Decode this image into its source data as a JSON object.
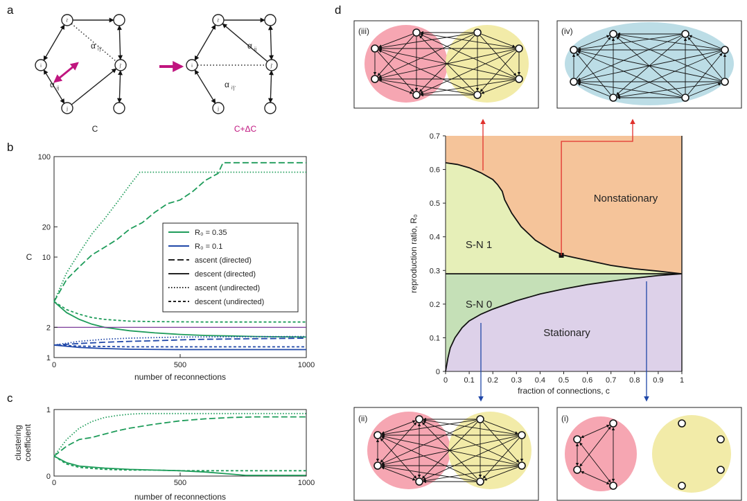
{
  "panels": {
    "a": {
      "letter": "a",
      "left_caption": "C",
      "right_caption": "C+ΔC",
      "alpha": "α",
      "sub_ij": "ij",
      "sub_ijp": "i'j'",
      "node_i": "i",
      "node_ip": "i'",
      "node_j": "j",
      "node_jp": "j'"
    },
    "b": {
      "letter": "b",
      "legend": [
        "R₀ = 0.35",
        "R₀ = 0.1",
        "ascent (directed)",
        "descent (directed)",
        "ascent (undirected)",
        "descent (undirected)"
      ]
    },
    "c": {
      "letter": "c"
    },
    "d": {
      "letter": "d",
      "network_labels": [
        "(iii)",
        "(iv)",
        "(ii)",
        "(i)"
      ]
    }
  },
  "colors": {
    "green": "#1e9c5a",
    "blue": "#1f47a8",
    "purple": "#7a3a98",
    "magenta": "#c0157f",
    "red_arrow": "#e0302c",
    "blue_arrow": "#1f47a8",
    "pink": "#f6a6b2",
    "yellow": "#f2eba8",
    "lightblue": "#bcdde6",
    "nonstationary": "#f5c49a",
    "sn1": "#e6efb8",
    "sn0": "#c5e0b7",
    "stationary": "#ddd1e9"
  },
  "chart_data": [
    {
      "id": "b",
      "type": "line",
      "xlabel": "number of reconnections",
      "ylabel": "C",
      "xlim": [
        0,
        1000
      ],
      "ylim": [
        1,
        100
      ],
      "yscale": "log",
      "xticks": [
        0,
        500,
        1000
      ],
      "yticks": [
        1,
        2,
        10,
        20,
        100
      ],
      "grid": false,
      "legend_position": "right",
      "series": [
        {
          "name": "ascent (directed)",
          "R0": 0.35,
          "color": "green",
          "dash": "dashed",
          "x": [
            0,
            50,
            100,
            150,
            200,
            250,
            300,
            350,
            400,
            450,
            500,
            550,
            600,
            650,
            670,
            700,
            800,
            900,
            1000
          ],
          "y": [
            3.6,
            6.0,
            8.0,
            10.5,
            12.5,
            15.0,
            19.0,
            22.0,
            28.0,
            34.0,
            37.0,
            45.0,
            58.0,
            68.0,
            87.0,
            87.0,
            87.0,
            87.0,
            87.0
          ]
        },
        {
          "name": "descent (directed)",
          "R0": 0.35,
          "color": "green",
          "dash": "solid",
          "x": [
            0,
            50,
            100,
            150,
            200,
            300,
            400,
            500,
            600,
            700,
            800,
            1000
          ],
          "y": [
            3.6,
            2.8,
            2.4,
            2.15,
            2.0,
            1.85,
            1.76,
            1.7,
            1.66,
            1.64,
            1.62,
            1.6
          ]
        },
        {
          "name": "ascent (undirected)",
          "R0": 0.35,
          "color": "green",
          "dash": "dotted",
          "x": [
            0,
            50,
            100,
            150,
            200,
            250,
            300,
            340,
            400,
            600,
            800,
            1000
          ],
          "y": [
            3.6,
            7.0,
            11.0,
            17.0,
            24.0,
            35.0,
            52.0,
            70.0,
            70.0,
            70.0,
            70.0,
            70.0
          ]
        },
        {
          "name": "descent (undirected)",
          "R0": 0.35,
          "color": "green",
          "dash": "shortdash",
          "x": [
            0,
            50,
            100,
            150,
            200,
            300,
            400,
            500,
            600,
            800,
            1000
          ],
          "y": [
            3.6,
            3.0,
            2.7,
            2.5,
            2.4,
            2.3,
            2.28,
            2.27,
            2.26,
            2.26,
            2.26
          ]
        },
        {
          "name": "ascent (directed)",
          "R0": 0.1,
          "color": "blue",
          "dash": "dashed",
          "x": [
            0,
            100,
            200,
            300,
            400,
            500,
            600,
            700,
            800,
            900,
            1000
          ],
          "y": [
            1.33,
            1.38,
            1.42,
            1.45,
            1.47,
            1.5,
            1.52,
            1.53,
            1.54,
            1.55,
            1.56
          ]
        },
        {
          "name": "descent (directed)",
          "R0": 0.1,
          "color": "blue",
          "dash": "solid",
          "x": [
            0,
            100,
            200,
            300,
            500,
            700,
            1000
          ],
          "y": [
            1.33,
            1.26,
            1.23,
            1.21,
            1.2,
            1.2,
            1.2
          ]
        },
        {
          "name": "ascent (undirected)",
          "R0": 0.1,
          "color": "blue",
          "dash": "dotted",
          "x": [
            0,
            100,
            200,
            300,
            400,
            500,
            700,
            1000
          ],
          "y": [
            1.33,
            1.45,
            1.52,
            1.56,
            1.58,
            1.6,
            1.61,
            1.62
          ]
        },
        {
          "name": "descent (undirected)",
          "R0": 0.1,
          "color": "blue",
          "dash": "shortdash",
          "x": [
            0,
            100,
            200,
            300,
            500,
            1000
          ],
          "y": [
            1.33,
            1.3,
            1.29,
            1.28,
            1.28,
            1.28
          ]
        },
        {
          "color": "purple",
          "dash": "solid",
          "x": [
            0,
            1000
          ],
          "y": [
            2,
            2
          ]
        }
      ]
    },
    {
      "id": "c",
      "type": "line",
      "xlabel": "number of reconnections",
      "ylabel": "clustering coefficient",
      "xlim": [
        0,
        1000
      ],
      "ylim": [
        0,
        1
      ],
      "xticks": [
        0,
        500,
        1000
      ],
      "yticks": [
        0,
        1
      ],
      "grid": false,
      "series": [
        {
          "name": "ascent (directed)",
          "color": "green",
          "dash": "dashed",
          "x": [
            0,
            50,
            100,
            150,
            200,
            250,
            300,
            400,
            500,
            600,
            700,
            800,
            1000
          ],
          "y": [
            0.3,
            0.45,
            0.55,
            0.58,
            0.63,
            0.68,
            0.72,
            0.78,
            0.83,
            0.86,
            0.88,
            0.89,
            0.89
          ]
        },
        {
          "name": "descent (directed)",
          "color": "green",
          "dash": "solid",
          "x": [
            0,
            50,
            100,
            200,
            300,
            400,
            500,
            600,
            700,
            760,
            800,
            1000
          ],
          "y": [
            0.3,
            0.2,
            0.15,
            0.12,
            0.1,
            0.09,
            0.08,
            0.06,
            0.03,
            0.01,
            0.01,
            0.01
          ]
        },
        {
          "name": "ascent (undirected)",
          "color": "green",
          "dash": "dotted",
          "x": [
            0,
            50,
            100,
            150,
            200,
            250,
            300,
            350,
            400,
            600,
            1000
          ],
          "y": [
            0.3,
            0.55,
            0.72,
            0.82,
            0.88,
            0.91,
            0.93,
            0.94,
            0.94,
            0.94,
            0.94
          ]
        },
        {
          "name": "descent (undirected)",
          "color": "green",
          "dash": "shortdash",
          "x": [
            0,
            50,
            100,
            200,
            300,
            400,
            500,
            700,
            1000
          ],
          "y": [
            0.3,
            0.18,
            0.13,
            0.1,
            0.09,
            0.09,
            0.08,
            0.08,
            0.08
          ]
        }
      ]
    },
    {
      "id": "d",
      "type": "area",
      "xlabel": "fraction of connections, c",
      "ylabel": "reproduction ratio, R₀",
      "xlim": [
        0,
        1
      ],
      "ylim": [
        0,
        0.7
      ],
      "xticks": [
        0,
        0.1,
        0.2,
        0.3,
        0.4,
        0.5,
        0.6,
        0.7,
        0.8,
        0.9,
        1
      ],
      "xticklabels": [
        "0",
        "0.1",
        "0.2",
        "0.3",
        "0.4",
        "0.5",
        "0.6",
        "0.7",
        "0.8",
        "0.9",
        "1"
      ],
      "yticks": [
        0,
        0.1,
        0.2,
        0.3,
        0.4,
        0.5,
        0.6,
        0.7
      ],
      "yticklabels": [
        "0",
        "0.1",
        "0.2",
        "0.3",
        "0.4",
        "0.5",
        "0.6",
        "0.7"
      ],
      "regions": [
        {
          "name": "Nonstationary",
          "color": "nonstationary"
        },
        {
          "name": "S-N 1",
          "color": "sn1"
        },
        {
          "name": "S-N 0",
          "color": "sn0"
        },
        {
          "name": "Stationary",
          "color": "stationary"
        }
      ],
      "upper_boundary": {
        "x": [
          0,
          0.05,
          0.1,
          0.15,
          0.2,
          0.22,
          0.24,
          0.25,
          0.28,
          0.32,
          0.38,
          0.45,
          0.5,
          0.6,
          0.7,
          0.8,
          0.9,
          1.0
        ],
        "y": [
          0.62,
          0.615,
          0.605,
          0.59,
          0.57,
          0.555,
          0.535,
          0.51,
          0.47,
          0.43,
          0.39,
          0.36,
          0.345,
          0.33,
          0.315,
          0.305,
          0.298,
          0.29
        ]
      },
      "lower_boundary": {
        "x": [
          0,
          0.005,
          0.01,
          0.02,
          0.04,
          0.07,
          0.1,
          0.15,
          0.2,
          0.3,
          0.4,
          0.5,
          0.6,
          0.7,
          0.8,
          0.9,
          1.0
        ],
        "y": [
          0,
          0.02,
          0.04,
          0.07,
          0.1,
          0.13,
          0.15,
          0.17,
          0.185,
          0.21,
          0.23,
          0.245,
          0.258,
          0.268,
          0.277,
          0.285,
          0.29
        ]
      },
      "horizontal_line": 0.29,
      "marker": {
        "x": 0.49,
        "y": 0.345
      }
    }
  ]
}
